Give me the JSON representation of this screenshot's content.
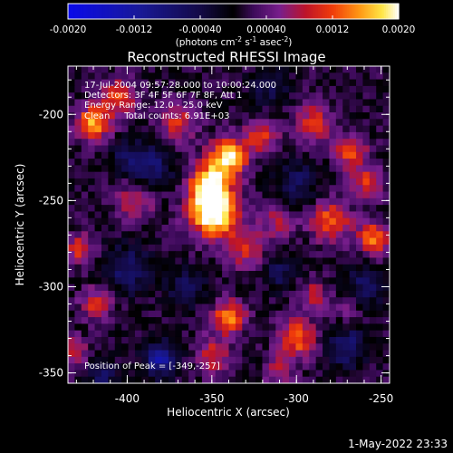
{
  "colorbar": {
    "ticks": [
      "-0.0020",
      "-0.0012",
      "-0.00040",
      "0.00040",
      "0.0012",
      "0.0020"
    ],
    "tick_values": [
      -0.002,
      -0.0012,
      -0.0004,
      0.0004,
      0.0012,
      0.002
    ],
    "range": [
      -0.002,
      0.002
    ],
    "unit_main": "(photons cm",
    "unit_exp1": "-2",
    "unit_mid": " s",
    "unit_exp2": "-1",
    "unit_tail": " asec",
    "unit_exp3": "-2",
    "unit_close": ")"
  },
  "annotations": {
    "time_range": "17-Jul-2004 09:57:28.000 to 10:00:24.000",
    "detectors": "Detectors: 3F 4F 5F 6F 7F 8F, Att 1",
    "energy": "Energy Range: 12.0 - 25.0 keV",
    "clean": "Clean     Total counts: 6.91E+03",
    "peak": "Position of Peak = [-349,-257]"
  },
  "footer": {
    "date": "1-May-2022 23:33"
  },
  "colors": {
    "background": "#000000",
    "foreground": "#ffffff"
  },
  "chart_data": {
    "type": "heatmap",
    "title": "Reconstructed RHESSI Image",
    "xlabel": "Heliocentric X (arcsec)",
    "ylabel": "Heliocentric Y (arcsec)",
    "xlim": [
      -435,
      -245
    ],
    "ylim": [
      -356,
      -172
    ],
    "x_ticks": [
      -400,
      -350,
      -300,
      -250
    ],
    "x_tick_labels": [
      "-400",
      "-350",
      "-300",
      "-250"
    ],
    "y_ticks": [
      -350,
      -300,
      -250,
      -200
    ],
    "y_tick_labels": [
      "-350",
      "-300",
      "-250",
      "-200"
    ],
    "colormap": "rhessi-3",
    "peak": [
      -349,
      -257
    ],
    "grid_size": [
      48,
      48
    ],
    "sources": [
      {
        "x": -349,
        "y": -257,
        "amp": 0.00215,
        "sigma": 10
      },
      {
        "x": -340,
        "y": -225,
        "amp": 0.0017,
        "sigma": 8
      },
      {
        "x": -352,
        "y": -240,
        "amp": 0.0016,
        "sigma": 8
      },
      {
        "x": -420,
        "y": -205,
        "amp": 0.0015,
        "sigma": 7
      },
      {
        "x": -405,
        "y": -190,
        "amp": 0.0011,
        "sigma": 7
      },
      {
        "x": -370,
        "y": -205,
        "amp": 0.0009,
        "sigma": 8
      },
      {
        "x": -395,
        "y": -250,
        "amp": 0.0008,
        "sigma": 8
      },
      {
        "x": -320,
        "y": -212,
        "amp": 0.0009,
        "sigma": 7
      },
      {
        "x": -290,
        "y": -205,
        "amp": 0.0009,
        "sigma": 8
      },
      {
        "x": -268,
        "y": -222,
        "amp": 0.001,
        "sigma": 7
      },
      {
        "x": -280,
        "y": -262,
        "amp": 0.0012,
        "sigma": 8
      },
      {
        "x": -258,
        "y": -240,
        "amp": 0.0009,
        "sigma": 7
      },
      {
        "x": -255,
        "y": -272,
        "amp": 0.0012,
        "sigma": 7
      },
      {
        "x": -330,
        "y": -278,
        "amp": 0.0009,
        "sigma": 8
      },
      {
        "x": -310,
        "y": -262,
        "amp": 0.0008,
        "sigma": 7
      },
      {
        "x": -428,
        "y": -278,
        "amp": 0.001,
        "sigma": 6
      },
      {
        "x": -418,
        "y": -310,
        "amp": 0.0009,
        "sigma": 7
      },
      {
        "x": -340,
        "y": -318,
        "amp": 0.0013,
        "sigma": 7
      },
      {
        "x": -350,
        "y": -340,
        "amp": 0.0009,
        "sigma": 7
      },
      {
        "x": -300,
        "y": -330,
        "amp": 0.0012,
        "sigma": 8
      },
      {
        "x": -290,
        "y": -305,
        "amp": 0.0008,
        "sigma": 6
      },
      {
        "x": -310,
        "y": -350,
        "amp": 0.0007,
        "sigma": 6
      },
      {
        "x": -270,
        "y": -312,
        "amp": 0.0006,
        "sigma": 6
      },
      {
        "x": -432,
        "y": -338,
        "amp": 0.0009,
        "sigma": 6
      },
      {
        "x": -315,
        "y": -185,
        "amp": -0.0006,
        "sigma": 8
      },
      {
        "x": -385,
        "y": -230,
        "amp": -0.0008,
        "sigma": 9
      },
      {
        "x": -300,
        "y": -240,
        "amp": -0.0007,
        "sigma": 9
      },
      {
        "x": -400,
        "y": -290,
        "amp": -0.0008,
        "sigma": 10
      },
      {
        "x": -365,
        "y": -300,
        "amp": -0.0007,
        "sigma": 8
      },
      {
        "x": -260,
        "y": -300,
        "amp": -0.0007,
        "sigma": 9
      },
      {
        "x": -310,
        "y": -292,
        "amp": -0.0006,
        "sigma": 7
      },
      {
        "x": -380,
        "y": -342,
        "amp": -0.0013,
        "sigma": 7
      },
      {
        "x": -270,
        "y": -335,
        "amp": -0.0009,
        "sigma": 8
      },
      {
        "x": -415,
        "y": -350,
        "amp": -0.0008,
        "sigma": 6
      },
      {
        "x": -400,
        "y": -225,
        "amp": -0.0006,
        "sigma": 7
      }
    ],
    "noise_amp": 0.00022
  }
}
